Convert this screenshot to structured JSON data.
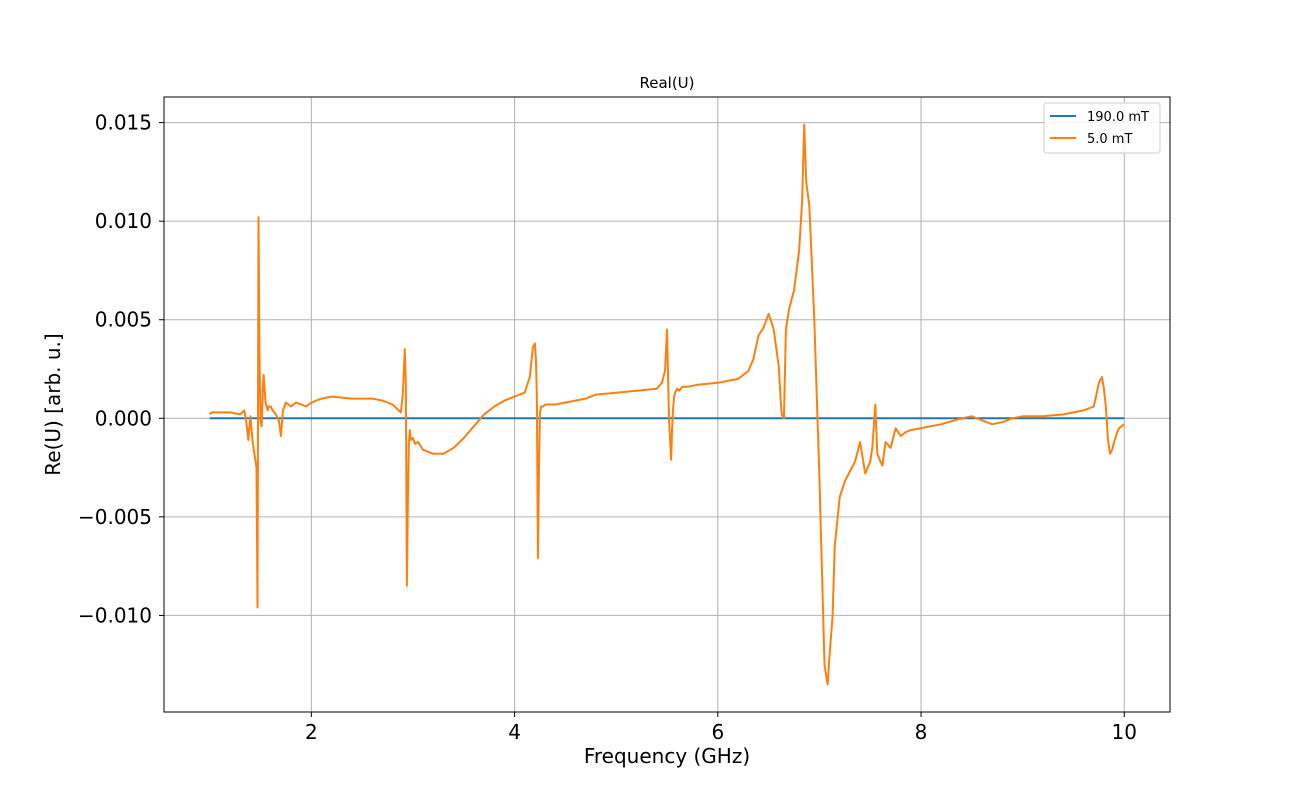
{
  "chart_data": {
    "type": "line",
    "title": "Real(U)",
    "xlabel": "Frequency (GHz)",
    "ylabel": "Re(U) [arb. u.]",
    "xlim": [
      0.55,
      10.45
    ],
    "ylim": [
      -0.0149,
      0.0163
    ],
    "xticks": [
      2,
      4,
      6,
      8,
      10
    ],
    "xtick_labels": [
      "2",
      "4",
      "6",
      "8",
      "10"
    ],
    "yticks": [
      -0.01,
      -0.005,
      0.0,
      0.005,
      0.01,
      0.015
    ],
    "ytick_labels": [
      "−0.010",
      "−0.005",
      "0.000",
      "0.005",
      "0.010",
      "0.015"
    ],
    "grid": true,
    "legend_position": "top-right",
    "series": [
      {
        "name": "190.0 mT",
        "color": "#1f77b4",
        "x": [
          1.0,
          10.0
        ],
        "y": [
          0.0,
          0.0
        ]
      },
      {
        "name": "5.0 mT",
        "color": "#ff7f0e",
        "x": [
          1.0,
          1.02,
          1.1,
          1.2,
          1.3,
          1.34,
          1.36,
          1.38,
          1.4,
          1.42,
          1.44,
          1.46,
          1.47,
          1.48,
          1.49,
          1.5,
          1.51,
          1.52,
          1.53,
          1.55,
          1.57,
          1.58,
          1.6,
          1.62,
          1.65,
          1.68,
          1.7,
          1.72,
          1.75,
          1.8,
          1.85,
          1.9,
          1.95,
          2.0,
          2.1,
          2.2,
          2.4,
          2.6,
          2.7,
          2.8,
          2.88,
          2.9,
          2.92,
          2.93,
          2.94,
          2.95,
          2.96,
          2.97,
          2.98,
          3.0,
          3.02,
          3.05,
          3.1,
          3.2,
          3.3,
          3.4,
          3.5,
          3.6,
          3.7,
          3.8,
          3.9,
          4.0,
          4.1,
          4.15,
          4.18,
          4.2,
          4.21,
          4.22,
          4.23,
          4.24,
          4.25,
          4.26,
          4.28,
          4.3,
          4.4,
          4.5,
          4.6,
          4.7,
          4.8,
          5.0,
          5.2,
          5.4,
          5.45,
          5.48,
          5.5,
          5.52,
          5.53,
          5.54,
          5.55,
          5.56,
          5.57,
          5.58,
          5.6,
          5.62,
          5.65,
          5.7,
          5.8,
          6.0,
          6.2,
          6.3,
          6.35,
          6.4,
          6.45,
          6.5,
          6.52,
          6.55,
          6.6,
          6.62,
          6.63,
          6.65,
          6.67,
          6.7,
          6.75,
          6.8,
          6.83,
          6.85,
          6.87,
          6.9,
          6.95,
          7.0,
          7.05,
          7.08,
          7.1,
          7.13,
          7.15,
          7.2,
          7.25,
          7.3,
          7.35,
          7.4,
          7.45,
          7.5,
          7.52,
          7.55,
          7.57,
          7.6,
          7.62,
          7.65,
          7.7,
          7.75,
          7.8,
          7.85,
          7.9,
          8.0,
          8.2,
          8.4,
          8.5,
          8.6,
          8.7,
          8.8,
          8.9,
          9.0,
          9.2,
          9.4,
          9.6,
          9.7,
          9.75,
          9.78,
          9.8,
          9.82,
          9.84,
          9.86,
          9.88,
          9.9,
          9.93,
          9.95,
          10.0
        ],
        "y": [
          0.0002,
          0.0003,
          0.0003,
          0.0003,
          0.0002,
          0.0004,
          -0.0002,
          -0.0011,
          0.0001,
          -0.0011,
          -0.0018,
          -0.0025,
          -0.0096,
          0.0102,
          0.0031,
          -0.0002,
          -0.0004,
          0.0012,
          0.0022,
          0.0008,
          0.0004,
          0.0006,
          0.0006,
          0.0004,
          0.0002,
          -0.0001,
          -0.0009,
          0.0004,
          0.0008,
          0.0006,
          0.0008,
          0.0007,
          0.0006,
          0.0008,
          0.001,
          0.0011,
          0.001,
          0.001,
          0.0009,
          0.0007,
          0.0003,
          0.0012,
          0.0035,
          0.0018,
          -0.0085,
          -0.004,
          -0.0012,
          -0.0006,
          -0.0011,
          -0.001,
          -0.0013,
          -0.0012,
          -0.0016,
          -0.0018,
          -0.0018,
          -0.0015,
          -0.001,
          -0.0004,
          0.0002,
          0.0006,
          0.0009,
          0.0011,
          0.0013,
          0.0021,
          0.0036,
          0.0038,
          0.003,
          0.001,
          -0.0071,
          -0.0024,
          0.0003,
          0.0006,
          0.0006,
          0.0007,
          0.0007,
          0.0008,
          0.0009,
          0.001,
          0.0012,
          0.0013,
          0.0014,
          0.0015,
          0.0018,
          0.0024,
          0.0045,
          0.0,
          -0.001,
          -0.0021,
          -0.0005,
          0.0005,
          0.0011,
          0.0013,
          0.0015,
          0.0014,
          0.0016,
          0.0016,
          0.0017,
          0.0018,
          0.002,
          0.0024,
          0.003,
          0.0042,
          0.0046,
          0.0053,
          0.005,
          0.0045,
          0.0026,
          0.0008,
          0.0002,
          0.0,
          0.0045,
          0.0055,
          0.0065,
          0.0085,
          0.011,
          0.0149,
          0.012,
          0.0108,
          0.005,
          -0.003,
          -0.0125,
          -0.0135,
          -0.012,
          -0.01,
          -0.0065,
          -0.004,
          -0.0032,
          -0.0027,
          -0.0022,
          -0.0012,
          -0.0028,
          -0.0022,
          -0.0015,
          0.0007,
          -0.0018,
          -0.0022,
          -0.0024,
          -0.0012,
          -0.0015,
          -0.0005,
          -0.0009,
          -0.0007,
          -0.0006,
          -0.0005,
          -0.0003,
          0.0,
          0.0001,
          -0.0001,
          -0.0003,
          -0.0002,
          0.0,
          0.0001,
          0.0001,
          0.0002,
          0.0004,
          0.0006,
          0.0018,
          0.0021,
          0.0015,
          0.0005,
          -0.0011,
          -0.0018,
          -0.0016,
          -0.0012,
          -0.0007,
          -0.0005,
          -0.0003
        ]
      }
    ]
  }
}
